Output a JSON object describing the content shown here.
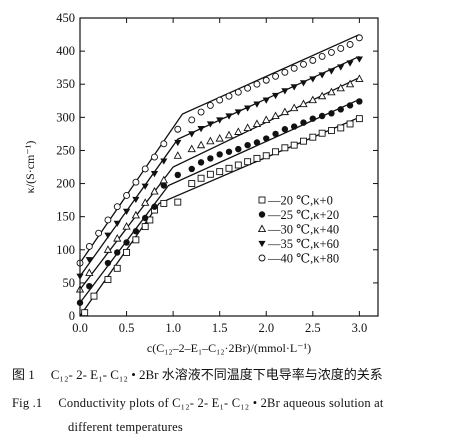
{
  "chart_data": {
    "type": "line",
    "title": "",
    "xlabel": "c(C₁₂–2–E₁–C₁₂·2Br)/(mmol·L⁻¹)",
    "ylabel": "κ/(S·cm⁻¹)",
    "xlim": [
      0,
      3.2
    ],
    "ylim": [
      0,
      450
    ],
    "xticks": [
      "0.0",
      "0.5",
      "1.0",
      "1.5",
      "2.0",
      "2.5",
      "3.0"
    ],
    "yticks": [
      "0",
      "50",
      "100",
      "150",
      "200",
      "250",
      "300",
      "350",
      "400",
      "450"
    ],
    "grid": false,
    "legend_position": "right",
    "series": [
      {
        "name": "—20 ℃,κ+0",
        "marker": "square-open",
        "fit": [
          [
            0,
            0
          ],
          [
            0.85,
            170
          ],
          [
            3.0,
            300
          ]
        ],
        "x": [
          0.05,
          0.15,
          0.3,
          0.4,
          0.5,
          0.6,
          0.7,
          0.75,
          0.8,
          0.9,
          1.05,
          1.2,
          1.3,
          1.4,
          1.5,
          1.6,
          1.7,
          1.8,
          1.9,
          2.0,
          2.1,
          2.2,
          2.3,
          2.4,
          2.5,
          2.6,
          2.7,
          2.8,
          2.9,
          3.0
        ],
        "y": [
          5,
          30,
          55,
          72,
          96,
          115,
          135,
          145,
          160,
          170,
          172,
          200,
          208,
          214,
          218,
          223,
          228,
          233,
          238,
          242,
          248,
          254,
          258,
          264,
          270,
          276,
          280,
          284,
          290,
          298
        ]
      },
      {
        "name": "—25 ℃,κ+20",
        "marker": "circle-filled",
        "fit": [
          [
            0,
            20
          ],
          [
            0.95,
            197
          ],
          [
            3.0,
            327
          ]
        ],
        "x": [
          0,
          0.1,
          0.3,
          0.4,
          0.5,
          0.6,
          0.7,
          0.8,
          0.9,
          1.05,
          1.2,
          1.3,
          1.4,
          1.5,
          1.6,
          1.7,
          1.8,
          1.9,
          2.0,
          2.1,
          2.2,
          2.3,
          2.4,
          2.5,
          2.6,
          2.7,
          2.8,
          2.9,
          3.0
        ],
        "y": [
          20,
          45,
          80,
          96,
          111,
          128,
          148,
          165,
          197,
          213,
          222,
          232,
          238,
          244,
          248,
          252,
          258,
          262,
          268,
          275,
          282,
          286,
          292,
          298,
          302,
          306,
          312,
          318,
          324
        ]
      },
      {
        "name": "—30 ℃,κ+40",
        "marker": "triangle-up-open",
        "fit": [
          [
            0,
            40
          ],
          [
            1.0,
            225
          ],
          [
            3.0,
            360
          ]
        ],
        "x": [
          0,
          0.1,
          0.3,
          0.4,
          0.5,
          0.6,
          0.7,
          0.8,
          0.9,
          1.05,
          1.2,
          1.3,
          1.4,
          1.5,
          1.6,
          1.7,
          1.8,
          1.9,
          2.0,
          2.1,
          2.2,
          2.3,
          2.4,
          2.5,
          2.6,
          2.7,
          2.8,
          2.9,
          3.0
        ],
        "y": [
          40,
          65,
          100,
          117,
          135,
          152,
          171,
          188,
          205,
          242,
          252,
          258,
          264,
          268,
          273,
          278,
          284,
          290,
          296,
          302,
          308,
          314,
          320,
          326,
          332,
          338,
          344,
          350,
          358
        ]
      },
      {
        "name": "—35 ℃,κ+60",
        "marker": "triangle-down-filled",
        "fit": [
          [
            0,
            60
          ],
          [
            1.05,
            267
          ],
          [
            3.0,
            392
          ]
        ],
        "x": [
          0,
          0.1,
          0.3,
          0.4,
          0.5,
          0.6,
          0.7,
          0.8,
          0.9,
          1.05,
          1.2,
          1.3,
          1.4,
          1.5,
          1.6,
          1.7,
          1.8,
          1.9,
          2.0,
          2.1,
          2.2,
          2.3,
          2.4,
          2.5,
          2.6,
          2.7,
          2.8,
          2.9,
          3.0
        ],
        "y": [
          60,
          85,
          122,
          140,
          158,
          176,
          196,
          215,
          234,
          262,
          275,
          283,
          290,
          296,
          302,
          308,
          314,
          320,
          326,
          333,
          340,
          346,
          352,
          358,
          364,
          370,
          376,
          382,
          388
        ]
      },
      {
        "name": "—40 ℃,κ+80",
        "marker": "circle-open",
        "fit": [
          [
            0,
            80
          ],
          [
            1.1,
            305
          ],
          [
            3.0,
            425
          ]
        ],
        "x": [
          0,
          0.1,
          0.2,
          0.3,
          0.4,
          0.5,
          0.6,
          0.7,
          0.8,
          0.9,
          1.05,
          1.2,
          1.3,
          1.4,
          1.5,
          1.6,
          1.7,
          1.8,
          1.9,
          2.0,
          2.1,
          2.2,
          2.3,
          2.4,
          2.5,
          2.6,
          2.7,
          2.8,
          2.9,
          3.0
        ],
        "y": [
          80,
          105,
          125,
          145,
          165,
          182,
          202,
          222,
          240,
          260,
          282,
          296,
          308,
          318,
          326,
          332,
          338,
          344,
          350,
          356,
          362,
          368,
          374,
          380,
          386,
          392,
          398,
          404,
          410,
          420
        ]
      }
    ]
  },
  "caption": {
    "zh_label": "图 1",
    "zh_text": "C₁₂- 2- E₁- C₁₂ • 2Br 水溶液不同温度下电导率与浓度的关系",
    "en_label": "Fig .1",
    "en_text_line1": "Conductivity plots of C₁₂- 2- E₁- C₁₂ • 2Br aqueous solution at",
    "en_text_line2": "different temperatures"
  }
}
